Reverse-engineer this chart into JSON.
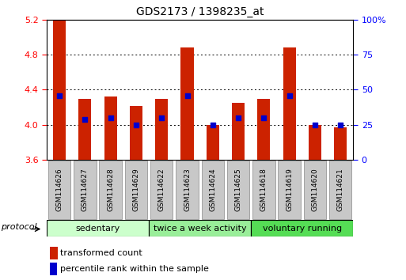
{
  "title": "GDS2173 / 1398235_at",
  "samples": [
    "GSM114626",
    "GSM114627",
    "GSM114628",
    "GSM114629",
    "GSM114622",
    "GSM114623",
    "GSM114624",
    "GSM114625",
    "GSM114618",
    "GSM114619",
    "GSM114620",
    "GSM114621"
  ],
  "transformed_counts": [
    5.185,
    4.295,
    4.32,
    4.215,
    4.29,
    4.88,
    3.995,
    4.25,
    4.29,
    4.88,
    3.995,
    3.965
  ],
  "percentile_values": [
    4.33,
    4.06,
    4.08,
    4.0,
    4.08,
    4.33,
    4.0,
    4.08,
    4.08,
    4.33,
    4.0,
    4.0
  ],
  "groups": [
    {
      "label": "sedentary",
      "start": 0,
      "end": 4,
      "color": "#ccffcc"
    },
    {
      "label": "twice a week activity",
      "start": 4,
      "end": 8,
      "color": "#99ee99"
    },
    {
      "label": "voluntary running",
      "start": 8,
      "end": 12,
      "color": "#55dd55"
    }
  ],
  "ylim": [
    3.6,
    5.2
  ],
  "y_ticks_left": [
    3.6,
    4.0,
    4.4,
    4.8,
    5.2
  ],
  "y_ticks_right": [
    0,
    25,
    50,
    75,
    100
  ],
  "bar_color": "#cc2200",
  "dot_color": "#0000cc",
  "bar_width": 0.5,
  "grid_color": "#000000",
  "background_color": "#ffffff",
  "protocol_label": "protocol",
  "legend_tc": "transformed count",
  "legend_pr": "percentile rank within the sample",
  "sample_box_color": "#c8c8c8"
}
